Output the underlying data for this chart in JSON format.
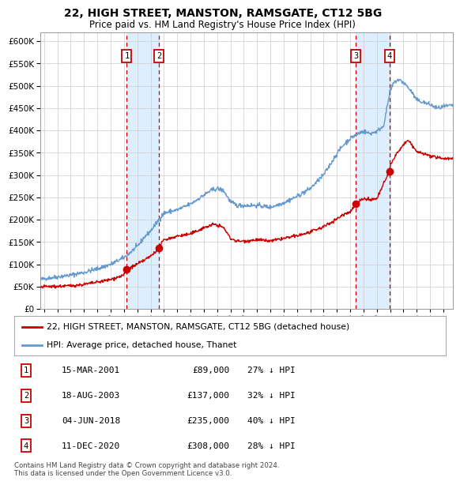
{
  "title": "22, HIGH STREET, MANSTON, RAMSGATE, CT12 5BG",
  "subtitle": "Price paid vs. HM Land Registry's House Price Index (HPI)",
  "footer": "Contains HM Land Registry data © Crown copyright and database right 2024.\nThis data is licensed under the Open Government Licence v3.0.",
  "legend_line1": "22, HIGH STREET, MANSTON, RAMSGATE, CT12 5BG (detached house)",
  "legend_line2": "HPI: Average price, detached house, Thanet",
  "transactions": [
    {
      "id": 1,
      "date": "15-MAR-2001",
      "price": 89000,
      "pct": "27% ↓ HPI",
      "year": 2001.21
    },
    {
      "id": 2,
      "date": "18-AUG-2003",
      "price": 137000,
      "pct": "32% ↓ HPI",
      "year": 2003.63
    },
    {
      "id": 3,
      "date": "04-JUN-2018",
      "price": 235000,
      "pct": "40% ↓ HPI",
      "year": 2018.42
    },
    {
      "id": 4,
      "date": "11-DEC-2020",
      "price": 308000,
      "pct": "28% ↓ HPI",
      "year": 2020.94
    }
  ],
  "hpi_color": "#6699cc",
  "price_color": "#cc0000",
  "vline_color": "#cc0000",
  "shade_color": "#ddeeff",
  "grid_color": "#cccccc",
  "bg_color": "#ffffff",
  "ylim": [
    0,
    620000
  ],
  "yticks": [
    0,
    50000,
    100000,
    150000,
    200000,
    250000,
    300000,
    350000,
    400000,
    450000,
    500000,
    550000,
    600000
  ],
  "xlim_start": 1994.7,
  "xlim_end": 2025.7,
  "xticks": [
    1995,
    1996,
    1997,
    1998,
    1999,
    2000,
    2001,
    2002,
    2003,
    2004,
    2005,
    2006,
    2007,
    2008,
    2009,
    2010,
    2011,
    2012,
    2013,
    2014,
    2015,
    2016,
    2017,
    2018,
    2019,
    2020,
    2021,
    2022,
    2023,
    2024,
    2025
  ]
}
